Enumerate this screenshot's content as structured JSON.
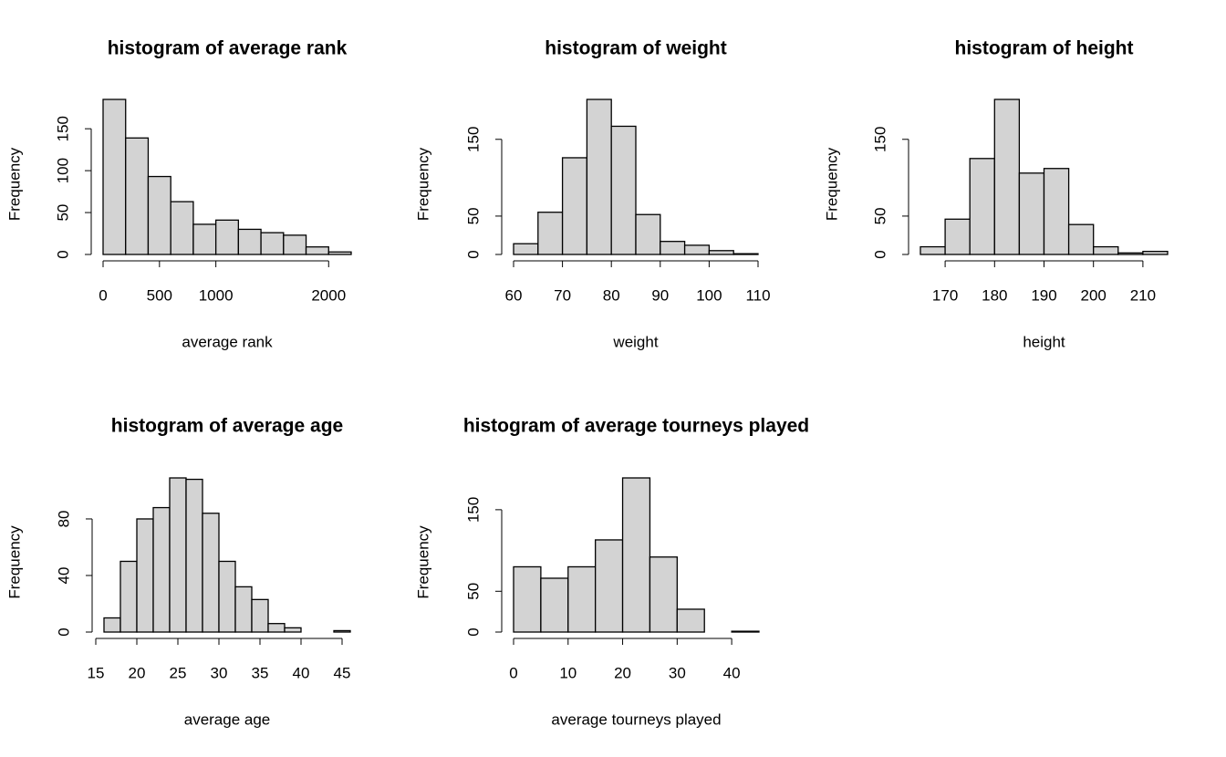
{
  "chart_data": [
    {
      "type": "histogram",
      "title": "histogram of average rank",
      "xlabel": "average rank",
      "ylabel": "Frequency",
      "bins": [
        0,
        200,
        400,
        600,
        800,
        1000,
        1200,
        1400,
        1600,
        1800,
        2000,
        2200
      ],
      "counts": [
        185,
        139,
        93,
        63,
        36,
        41,
        30,
        26,
        23,
        9,
        3
      ],
      "color": "#d3d3d3",
      "xlim": [
        0,
        2200
      ],
      "ylim": [
        0,
        185
      ],
      "xticks": [
        0,
        500,
        1000,
        2000
      ],
      "yticks": [
        0,
        50,
        100,
        150
      ]
    },
    {
      "type": "histogram",
      "title": "histogram of weight",
      "xlabel": "weight",
      "ylabel": "Frequency",
      "bins": [
        60,
        65,
        70,
        75,
        80,
        85,
        90,
        95,
        100,
        105,
        110
      ],
      "counts": [
        14,
        55,
        126,
        202,
        167,
        52,
        17,
        12,
        5,
        1
      ],
      "color": "#d3d3d3",
      "xlim": [
        60,
        110
      ],
      "ylim": [
        0,
        202
      ],
      "xticks": [
        60,
        70,
        80,
        90,
        100,
        110
      ],
      "yticks": [
        0,
        50,
        150
      ]
    },
    {
      "type": "histogram",
      "title": "histogram of height",
      "xlabel": "height",
      "ylabel": "Frequency",
      "bins": [
        165,
        170,
        175,
        180,
        185,
        190,
        195,
        200,
        205,
        210,
        215
      ],
      "counts": [
        10,
        46,
        125,
        202,
        106,
        112,
        39,
        10,
        2,
        4
      ],
      "color": "#d3d3d3",
      "xlim": [
        165,
        215
      ],
      "ylim": [
        0,
        202
      ],
      "xticks": [
        170,
        180,
        190,
        200,
        210
      ],
      "yticks": [
        0,
        50,
        150
      ]
    },
    {
      "type": "histogram",
      "title": "histogram of average age",
      "xlabel": "average age",
      "ylabel": "Frequency",
      "bins": [
        16,
        18,
        20,
        22,
        24,
        26,
        28,
        30,
        32,
        34,
        36,
        38,
        40,
        42,
        44,
        46
      ],
      "counts": [
        10,
        50,
        80,
        88,
        109,
        108,
        84,
        50,
        32,
        23,
        6,
        3,
        0,
        0,
        1
      ],
      "color": "#d3d3d3",
      "xlim": [
        16,
        46
      ],
      "ylim": [
        0,
        109
      ],
      "xticks": [
        15,
        20,
        25,
        30,
        35,
        40,
        45
      ],
      "yticks": [
        0,
        40,
        80
      ]
    },
    {
      "type": "histogram",
      "title": "histogram of average tourneys played",
      "xlabel": "average tourneys played",
      "ylabel": "Frequency",
      "bins": [
        0,
        5,
        10,
        15,
        20,
        25,
        30,
        35,
        40,
        45
      ],
      "counts": [
        80,
        66,
        80,
        113,
        189,
        92,
        28,
        0,
        1
      ],
      "color": "#d3d3d3",
      "xlim": [
        0,
        45
      ],
      "ylim": [
        0,
        189
      ],
      "xticks": [
        0,
        10,
        20,
        30,
        40
      ],
      "yticks": [
        0,
        50,
        150
      ]
    }
  ]
}
